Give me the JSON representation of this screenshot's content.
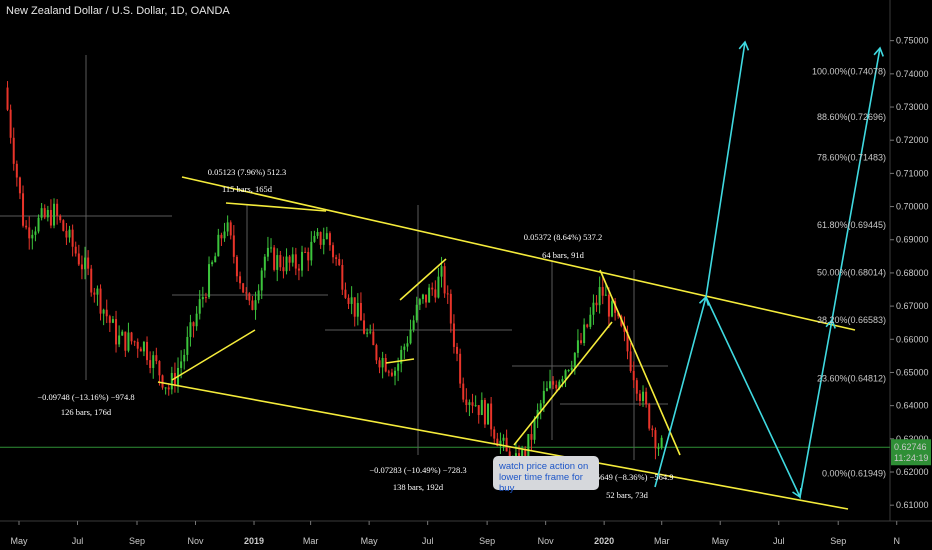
{
  "header": {
    "title": "New Zealand Dollar / U.S. Dollar, 1D, OANDA"
  },
  "colors": {
    "background": "#000000",
    "up_candle": "#3cc43c",
    "down_candle": "#e8342a",
    "channel": "#f5ec3b",
    "projection": "#3fd9e0",
    "price_line": "#2f8f36",
    "price_badge": "#2f8f36"
  },
  "annotations": {
    "note": "watch price action on lower time frame for buy"
  },
  "chart_data": {
    "type": "candlestick",
    "symbol": "NZDUSD",
    "timeframe": "1D",
    "x_axis": {
      "tick_labels": [
        "May",
        "Jul",
        "Sep",
        "Nov",
        "2019",
        "Mar",
        "May",
        "Jul",
        "Sep",
        "Nov",
        "2020",
        "Mar",
        "May",
        "Jul",
        "Sep",
        "N"
      ]
    },
    "y_axis": {
      "ylim": [
        0.6025,
        0.7565
      ],
      "tick_values": [
        0.61,
        0.62,
        0.63,
        0.64,
        0.65,
        0.66,
        0.67,
        0.68,
        0.69,
        0.7,
        0.71,
        0.72,
        0.73,
        0.74,
        0.75
      ],
      "tick_labels": [
        "0.61000",
        "0.62000",
        "0.63000",
        "0.64000",
        "0.65000",
        "0.66000",
        "0.67000",
        "0.68000",
        "0.69000",
        "0.70000",
        "0.71000",
        "0.72000",
        "0.73000",
        "0.74000",
        "0.75000"
      ]
    },
    "current_price": {
      "value": 0.62746,
      "label": "0.62746",
      "countdown": "11:24:19"
    },
    "fibonacci": [
      {
        "label": "100.00%(0.74078)",
        "value": 0.74078
      },
      {
        "label": "88.60%(0.72696)",
        "value": 0.72696
      },
      {
        "label": "78.60%(0.71483)",
        "value": 0.71483
      },
      {
        "label": "61.80%(0.69445)",
        "value": 0.69445
      },
      {
        "label": "50.00%(0.68014)",
        "value": 0.68014
      },
      {
        "label": "38.20%(0.66583)",
        "value": 0.66583
      },
      {
        "label": "23.60%(0.64812)",
        "value": 0.64812
      },
      {
        "label": "0.00%(0.61949)",
        "value": 0.61949
      }
    ],
    "measurements": [
      {
        "line1": "−0.09748 (−13.16%) −974.8",
        "line2": "126 bars, 176d"
      },
      {
        "line1": "0.05123 (7.96%) 512.3",
        "line2": "115 bars, 165d"
      },
      {
        "line1": "0.05372 (8.64%) 537.2",
        "line2": "64 bars, 91d"
      },
      {
        "line1": "−0.07283 (−10.49%) −728.3",
        "line2": "138 bars, 192d"
      },
      {
        "line1": "−0.05649 (−8.36%) −564.9",
        "line2": "52 bars, 73d"
      }
    ],
    "price_path": [
      {
        "date": "2018-04-18",
        "price": 0.738
      },
      {
        "date": "2018-05-10",
        "price": 0.693
      },
      {
        "date": "2018-06-10",
        "price": 0.698
      },
      {
        "date": "2018-07-18",
        "price": 0.678
      },
      {
        "date": "2018-08-15",
        "price": 0.66
      },
      {
        "date": "2018-09-10",
        "price": 0.659
      },
      {
        "date": "2018-10-08",
        "price": 0.645
      },
      {
        "date": "2018-10-25",
        "price": 0.657
      },
      {
        "date": "2018-11-25",
        "price": 0.685
      },
      {
        "date": "2018-12-05",
        "price": 0.695
      },
      {
        "date": "2018-12-31",
        "price": 0.668
      },
      {
        "date": "2019-01-15",
        "price": 0.685
      },
      {
        "date": "2019-02-15",
        "price": 0.682
      },
      {
        "date": "2019-03-20",
        "price": 0.692
      },
      {
        "date": "2019-04-15",
        "price": 0.672
      },
      {
        "date": "2019-05-10",
        "price": 0.656
      },
      {
        "date": "2019-06-01",
        "price": 0.651
      },
      {
        "date": "2019-06-25",
        "price": 0.67
      },
      {
        "date": "2019-07-20",
        "price": 0.679
      },
      {
        "date": "2019-08-10",
        "price": 0.645
      },
      {
        "date": "2019-09-05",
        "price": 0.637
      },
      {
        "date": "2019-10-01",
        "price": 0.621
      },
      {
        "date": "2019-10-15",
        "price": 0.626
      },
      {
        "date": "2019-11-01",
        "price": 0.642
      },
      {
        "date": "2019-12-10",
        "price": 0.658
      },
      {
        "date": "2020-01-01",
        "price": 0.675
      },
      {
        "date": "2020-01-25",
        "price": 0.66
      },
      {
        "date": "2020-02-15",
        "price": 0.64
      },
      {
        "date": "2020-03-02",
        "price": 0.6275
      }
    ]
  }
}
